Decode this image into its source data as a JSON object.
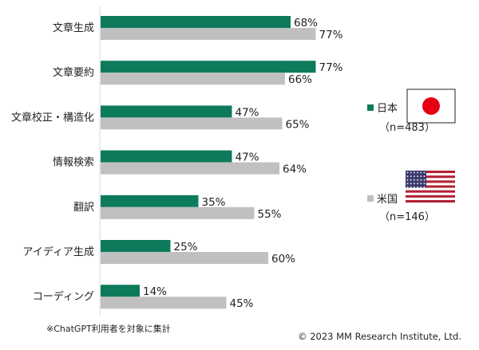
{
  "chart_data": {
    "type": "bar",
    "orientation": "horizontal",
    "categories": [
      "文章生成",
      "文章要約",
      "文章校正・構造化",
      "情報検索",
      "翻訳",
      "アイディア生成",
      "コーディング"
    ],
    "series": [
      {
        "name": "日本",
        "sample": "（n=483）",
        "color": "#0e7a5c",
        "values": [
          68,
          77,
          47,
          47,
          35,
          25,
          14
        ]
      },
      {
        "name": "米国",
        "sample": "（n=146）",
        "color": "#c0c0c0",
        "values": [
          77,
          66,
          65,
          64,
          55,
          60,
          45
        ]
      }
    ],
    "value_suffix": "%",
    "xlim": [
      0,
      100
    ],
    "legend_position": "right",
    "grid": false
  },
  "footnote": "※ChatGPT利用者を対象に集計",
  "copyright": "© 2023 MM Research Institute, Ltd."
}
